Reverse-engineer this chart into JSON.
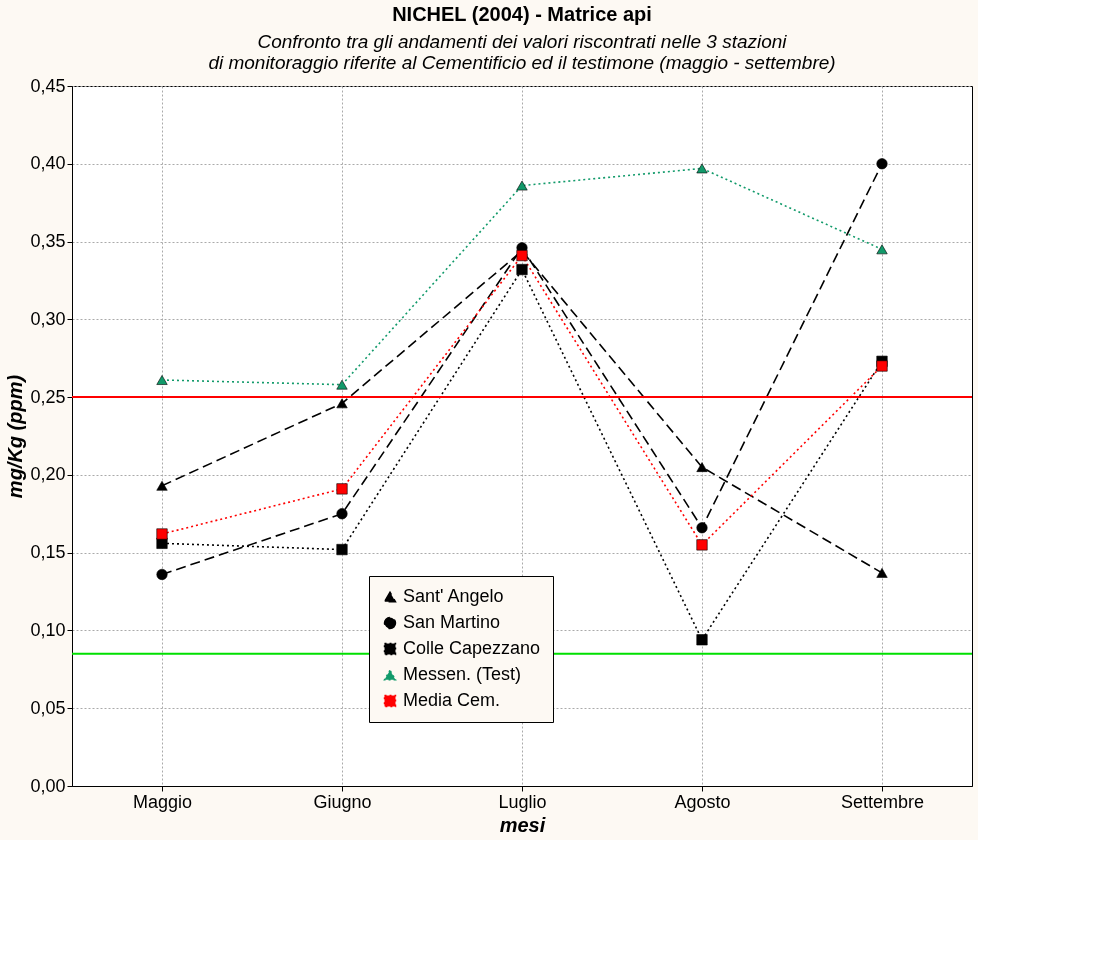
{
  "chart_data": {
    "type": "line",
    "title": "NICHEL (2004) - Matrice api",
    "subtitle": [
      "Confronto tra gli andamenti dei valori riscontrati nelle 3 stazioni",
      "di monitoraggio  riferite al Cementificio ed il testimone (maggio - settembre)"
    ],
    "xlabel": "mesi",
    "ylabel": "mg/Kg (ppm)",
    "categories": [
      "Maggio",
      "Giugno",
      "Luglio",
      "Agosto",
      "Settembre"
    ],
    "series": [
      {
        "name": "Sant' Angelo",
        "color": "#000000",
        "marker": "triangle",
        "line_style": "dashed",
        "values": [
          0.193,
          0.246,
          0.344,
          0.205,
          0.137
        ]
      },
      {
        "name": "San Martino",
        "color": "#000000",
        "marker": "circle",
        "line_style": "dashed",
        "values": [
          0.136,
          0.175,
          0.346,
          0.166,
          0.4
        ]
      },
      {
        "name": "Colle Capezzano",
        "color": "#000000",
        "marker": "square",
        "line_style": "dotted",
        "values": [
          0.156,
          0.152,
          0.332,
          0.094,
          0.273
        ]
      },
      {
        "name": "Messen. (Test)",
        "color": "#119a6a",
        "marker": "triangle",
        "line_style": "dotted",
        "values": [
          0.261,
          0.258,
          0.386,
          0.397,
          0.345
        ]
      },
      {
        "name": "Media Cem.",
        "color": "#ff0000",
        "marker": "square",
        "line_style": "dotted",
        "values": [
          0.162,
          0.191,
          0.341,
          0.155,
          0.27
        ]
      }
    ],
    "ylim": [
      0,
      0.45
    ],
    "yticks": [
      {
        "value": 0,
        "label": "0,00"
      },
      {
        "value": 0.05,
        "label": "0,05"
      },
      {
        "value": 0.1,
        "label": "0,10"
      },
      {
        "value": 0.15,
        "label": "0,15"
      },
      {
        "value": 0.2,
        "label": "0,20"
      },
      {
        "value": 0.25,
        "label": "0,25"
      },
      {
        "value": 0.3,
        "label": "0,30"
      },
      {
        "value": 0.35,
        "label": "0,35"
      },
      {
        "value": 0.4,
        "label": "0,40"
      },
      {
        "value": 0.45,
        "label": "0,45"
      }
    ],
    "ref_lines": [
      {
        "axis": "y",
        "value": 0.25,
        "color": "#ff0000"
      },
      {
        "axis": "y",
        "value": 0.085,
        "color": "#00e000"
      }
    ],
    "grid": true,
    "legend": "bottom"
  }
}
